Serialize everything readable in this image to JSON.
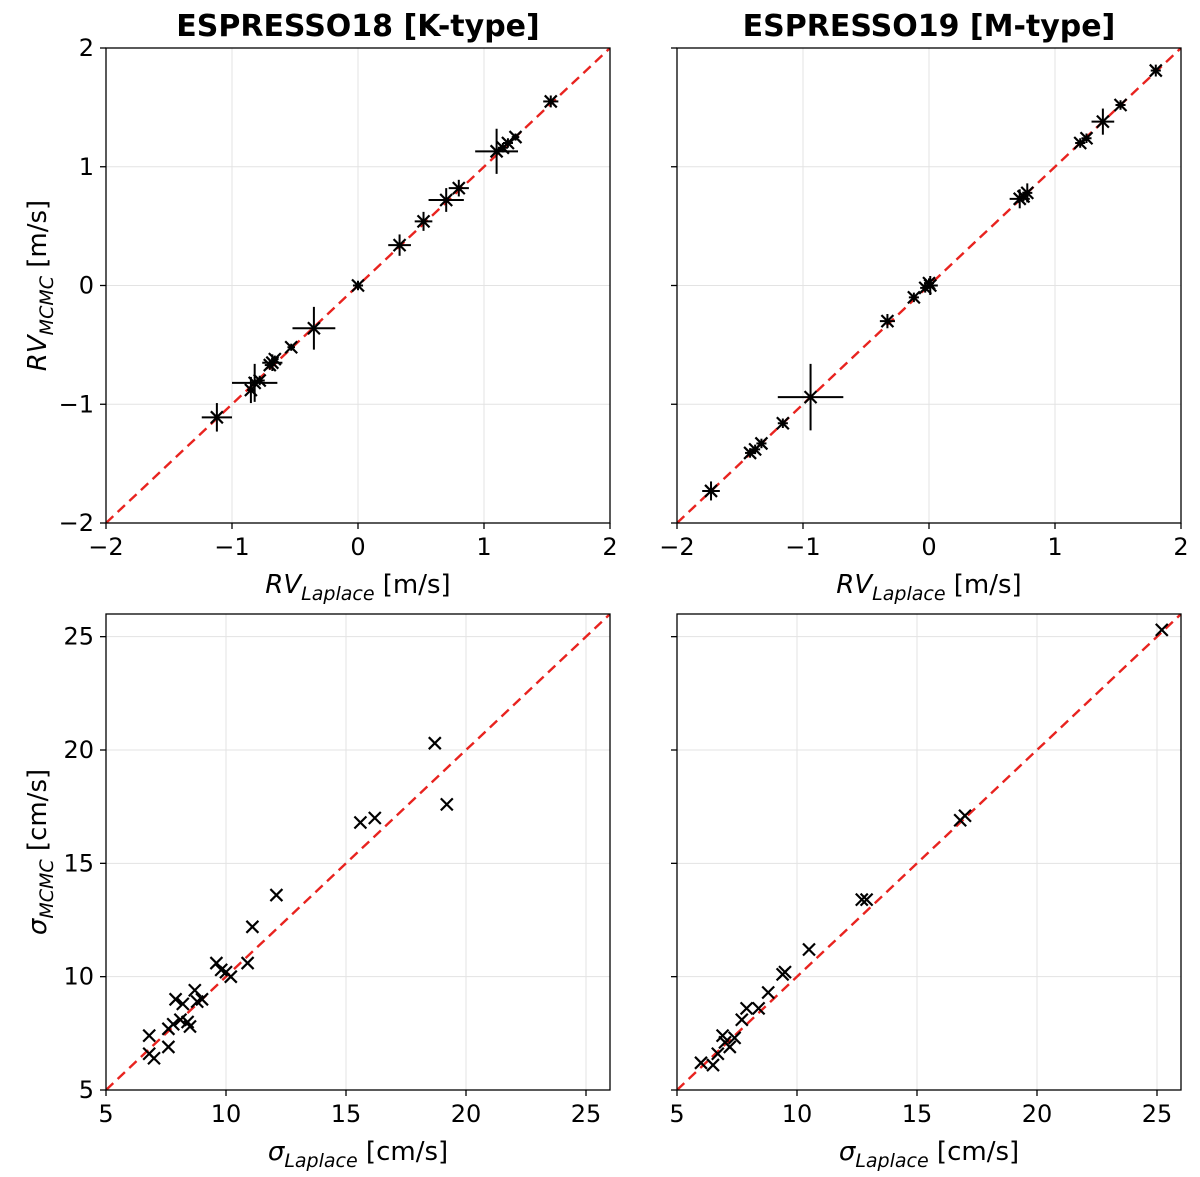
{
  "chart_data": [
    {
      "id": "p1",
      "type": "scatter",
      "title": "ESPRESSO18 [K-type]",
      "xlabel": {
        "base": "RV",
        "sub": "Laplace",
        "unit": " [m/s]"
      },
      "ylabel": {
        "base": "RV",
        "sub": "MCMC",
        "unit": " [m/s]"
      },
      "xlim": [
        -2,
        2
      ],
      "ylim": [
        -2,
        2
      ],
      "xticks": [
        -2,
        -1,
        0,
        1,
        2
      ],
      "yticks": [
        -2,
        -1,
        0,
        1,
        2
      ],
      "xtick_labels": [
        "−2",
        "−1",
        "0",
        "1",
        "2"
      ],
      "ytick_labels": [
        "−2",
        "−1",
        "0",
        "1",
        "2"
      ],
      "show_ytick_labels": true,
      "grid": true,
      "reference_line": {
        "style": "dashed",
        "color": "#e8231f",
        "slope": 1
      },
      "marker": "x",
      "points": [
        {
          "x": -1.12,
          "y": -1.11,
          "xerr": 0.12,
          "yerr": 0.12
        },
        {
          "x": -0.85,
          "y": -0.88,
          "xerr": 0.03,
          "yerr": 0.11
        },
        {
          "x": -0.82,
          "y": -0.82,
          "xerr": 0.18,
          "yerr": 0.16
        },
        {
          "x": -0.78,
          "y": -0.8,
          "xerr": 0.04,
          "yerr": 0.04
        },
        {
          "x": -0.7,
          "y": -0.67,
          "xerr": 0.04,
          "yerr": 0.04
        },
        {
          "x": -0.68,
          "y": -0.65,
          "xerr": 0.08,
          "yerr": 0.07
        },
        {
          "x": -0.66,
          "y": -0.62,
          "xerr": 0.03,
          "yerr": 0.03
        },
        {
          "x": -0.53,
          "y": -0.52,
          "xerr": 0.03,
          "yerr": 0.03
        },
        {
          "x": -0.35,
          "y": -0.36,
          "xerr": 0.17,
          "yerr": 0.18
        },
        {
          "x": 0.0,
          "y": 0.0,
          "xerr": 0.04,
          "yerr": 0.04
        },
        {
          "x": 0.33,
          "y": 0.34,
          "xerr": 0.09,
          "yerr": 0.09
        },
        {
          "x": 0.52,
          "y": 0.54,
          "xerr": 0.07,
          "yerr": 0.08
        },
        {
          "x": 0.7,
          "y": 0.72,
          "xerr": 0.14,
          "yerr": 0.1
        },
        {
          "x": 0.8,
          "y": 0.82,
          "xerr": 0.08,
          "yerr": 0.07
        },
        {
          "x": 1.1,
          "y": 1.13,
          "xerr": 0.17,
          "yerr": 0.19
        },
        {
          "x": 1.15,
          "y": 1.16,
          "xerr": 0.04,
          "yerr": 0.04
        },
        {
          "x": 1.19,
          "y": 1.2,
          "xerr": 0.04,
          "yerr": 0.04
        },
        {
          "x": 1.25,
          "y": 1.25,
          "xerr": 0.03,
          "yerr": 0.03
        },
        {
          "x": 1.53,
          "y": 1.55,
          "xerr": 0.06,
          "yerr": 0.05
        }
      ]
    },
    {
      "id": "p2",
      "type": "scatter",
      "title": "ESPRESSO19 [M-type]",
      "xlabel": {
        "base": "RV",
        "sub": "Laplace",
        "unit": " [m/s]"
      },
      "ylabel": null,
      "xlim": [
        -2,
        2
      ],
      "ylim": [
        -2,
        2
      ],
      "xticks": [
        -2,
        -1,
        0,
        1,
        2
      ],
      "yticks": [
        -2,
        -1,
        0,
        1,
        2
      ],
      "xtick_labels": [
        "−2",
        "−1",
        "0",
        "1",
        "2"
      ],
      "ytick_labels": [],
      "show_ytick_labels": false,
      "grid": true,
      "reference_line": {
        "style": "dashed",
        "color": "#e8231f",
        "slope": 1
      },
      "marker": "x",
      "points": [
        {
          "x": -1.73,
          "y": -1.73,
          "xerr": 0.07,
          "yerr": 0.08
        },
        {
          "x": -1.42,
          "y": -1.41,
          "xerr": 0.04,
          "yerr": 0.04
        },
        {
          "x": -1.38,
          "y": -1.38,
          "xerr": 0.04,
          "yerr": 0.04
        },
        {
          "x": -1.33,
          "y": -1.33,
          "xerr": 0.04,
          "yerr": 0.04
        },
        {
          "x": -1.16,
          "y": -1.16,
          "xerr": 0.04,
          "yerr": 0.04
        },
        {
          "x": -0.94,
          "y": -0.94,
          "xerr": 0.26,
          "yerr": 0.28
        },
        {
          "x": -0.33,
          "y": -0.3,
          "xerr": 0.06,
          "yerr": 0.06
        },
        {
          "x": -0.12,
          "y": -0.1,
          "xerr": 0.04,
          "yerr": 0.04
        },
        {
          "x": -0.03,
          "y": -0.02,
          "xerr": 0.04,
          "yerr": 0.04
        },
        {
          "x": 0.0,
          "y": 0.02,
          "xerr": 0.04,
          "yerr": 0.04
        },
        {
          "x": 0.01,
          "y": 0.0,
          "xerr": 0.06,
          "yerr": 0.08
        },
        {
          "x": 0.72,
          "y": 0.73,
          "xerr": 0.08,
          "yerr": 0.08
        },
        {
          "x": 0.75,
          "y": 0.75,
          "xerr": 0.04,
          "yerr": 0.04
        },
        {
          "x": 0.78,
          "y": 0.78,
          "xerr": 0.04,
          "yerr": 0.08
        },
        {
          "x": 1.2,
          "y": 1.2,
          "xerr": 0.04,
          "yerr": 0.04
        },
        {
          "x": 1.25,
          "y": 1.24,
          "xerr": 0.04,
          "yerr": 0.04
        },
        {
          "x": 1.38,
          "y": 1.38,
          "xerr": 0.09,
          "yerr": 0.11
        },
        {
          "x": 1.52,
          "y": 1.52,
          "xerr": 0.04,
          "yerr": 0.04
        },
        {
          "x": 1.8,
          "y": 1.81,
          "xerr": 0.04,
          "yerr": 0.05
        }
      ]
    },
    {
      "id": "p3",
      "type": "scatter",
      "title": "",
      "xlabel": {
        "base": "σ",
        "sub": "Laplace",
        "unit": " [cm/s]"
      },
      "ylabel": {
        "base": "σ",
        "sub": "MCMC",
        "unit": " [cm/s]"
      },
      "xlim": [
        5,
        26
      ],
      "ylim": [
        5,
        26
      ],
      "xticks": [
        5,
        10,
        15,
        20,
        25
      ],
      "yticks": [
        5,
        10,
        15,
        20,
        25
      ],
      "xtick_labels": [
        "5",
        "10",
        "15",
        "20",
        "25"
      ],
      "ytick_labels": [
        "5",
        "10",
        "15",
        "20",
        "25"
      ],
      "show_ytick_labels": true,
      "grid": true,
      "reference_line": {
        "style": "dashed",
        "color": "#e8231f",
        "slope": 1
      },
      "marker": "x",
      "points": [
        {
          "x": 6.8,
          "y": 7.4
        },
        {
          "x": 6.8,
          "y": 6.6
        },
        {
          "x": 7.0,
          "y": 6.4
        },
        {
          "x": 7.6,
          "y": 6.9
        },
        {
          "x": 7.6,
          "y": 7.7
        },
        {
          "x": 7.8,
          "y": 7.9
        },
        {
          "x": 7.9,
          "y": 9.0
        },
        {
          "x": 8.1,
          "y": 8.1
        },
        {
          "x": 8.2,
          "y": 8.8
        },
        {
          "x": 8.4,
          "y": 8.0
        },
        {
          "x": 8.5,
          "y": 7.8
        },
        {
          "x": 8.7,
          "y": 9.4
        },
        {
          "x": 8.8,
          "y": 8.9
        },
        {
          "x": 9.0,
          "y": 9.0
        },
        {
          "x": 9.6,
          "y": 10.6
        },
        {
          "x": 9.8,
          "y": 10.3
        },
        {
          "x": 10.0,
          "y": 10.2
        },
        {
          "x": 10.2,
          "y": 10.0
        },
        {
          "x": 10.9,
          "y": 10.6
        },
        {
          "x": 11.1,
          "y": 12.2
        },
        {
          "x": 12.1,
          "y": 13.6
        },
        {
          "x": 15.6,
          "y": 16.8
        },
        {
          "x": 16.2,
          "y": 17.0
        },
        {
          "x": 18.7,
          "y": 20.3
        },
        {
          "x": 19.2,
          "y": 17.6
        }
      ]
    },
    {
      "id": "p4",
      "type": "scatter",
      "title": "",
      "xlabel": {
        "base": "σ",
        "sub": "Laplace",
        "unit": " [cm/s]"
      },
      "ylabel": null,
      "xlim": [
        5,
        26
      ],
      "ylim": [
        5,
        26
      ],
      "xticks": [
        5,
        10,
        15,
        20,
        25
      ],
      "yticks": [
        5,
        10,
        15,
        20,
        25
      ],
      "xtick_labels": [
        "5",
        "10",
        "15",
        "20",
        "25"
      ],
      "ytick_labels": [],
      "show_ytick_labels": false,
      "grid": true,
      "reference_line": {
        "style": "dashed",
        "color": "#e8231f",
        "slope": 1
      },
      "marker": "x",
      "points": [
        {
          "x": 6.0,
          "y": 6.2
        },
        {
          "x": 6.5,
          "y": 6.1
        },
        {
          "x": 6.7,
          "y": 6.6
        },
        {
          "x": 6.9,
          "y": 7.4
        },
        {
          "x": 7.0,
          "y": 7.1
        },
        {
          "x": 7.2,
          "y": 6.9
        },
        {
          "x": 7.4,
          "y": 7.3
        },
        {
          "x": 7.7,
          "y": 8.1
        },
        {
          "x": 7.9,
          "y": 8.6
        },
        {
          "x": 8.4,
          "y": 8.6
        },
        {
          "x": 8.8,
          "y": 9.3
        },
        {
          "x": 9.4,
          "y": 10.1
        },
        {
          "x": 9.5,
          "y": 10.2
        },
        {
          "x": 10.5,
          "y": 11.2
        },
        {
          "x": 12.7,
          "y": 13.4
        },
        {
          "x": 12.9,
          "y": 13.4
        },
        {
          "x": 16.8,
          "y": 16.9
        },
        {
          "x": 17.0,
          "y": 17.1
        },
        {
          "x": 25.2,
          "y": 25.3
        }
      ]
    }
  ]
}
